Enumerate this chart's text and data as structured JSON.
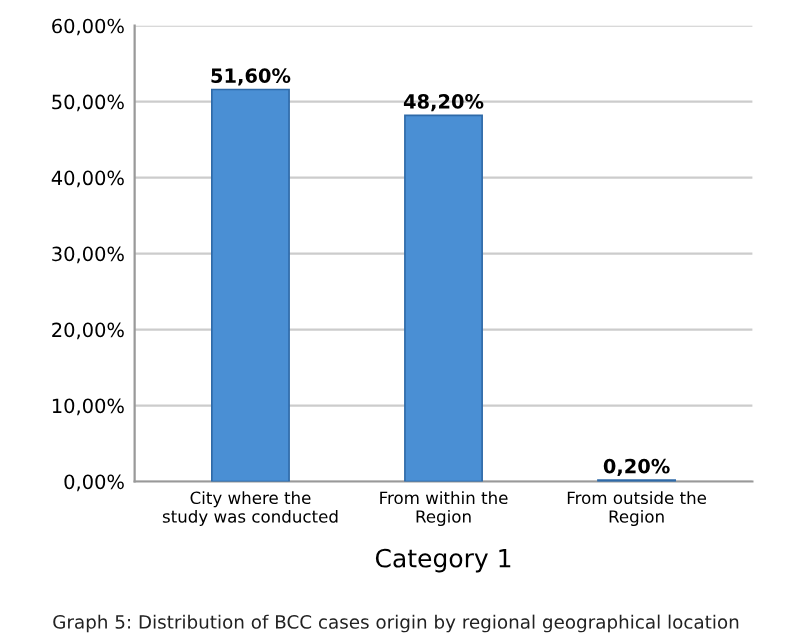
{
  "chart_data": {
    "type": "bar",
    "xlabel": "Category 1",
    "categories": [
      "City where the\nstudy was conducted",
      "From within the\nRegion",
      "From outside the\nRegion"
    ],
    "values": [
      51.6,
      48.2,
      0.2
    ],
    "color": "#4a8fd4",
    "value_labels": [
      "51,60%",
      "48,20%",
      "0,20%"
    ],
    "ylim": [
      0,
      60
    ],
    "yticks": [
      {
        "value": 0,
        "label": "0,00%"
      },
      {
        "value": 10,
        "label": "10,00%"
      },
      {
        "value": 20,
        "label": "20,00%"
      },
      {
        "value": 30,
        "label": "30,00%"
      },
      {
        "value": 40,
        "label": "40,00%"
      },
      {
        "value": 50,
        "label": "50,00%"
      },
      {
        "value": 60,
        "label": "60,00%"
      }
    ],
    "grid": "y",
    "annotations": [
      "Graph 5: Distribution of BCC cases origin by regional geographical location"
    ]
  }
}
